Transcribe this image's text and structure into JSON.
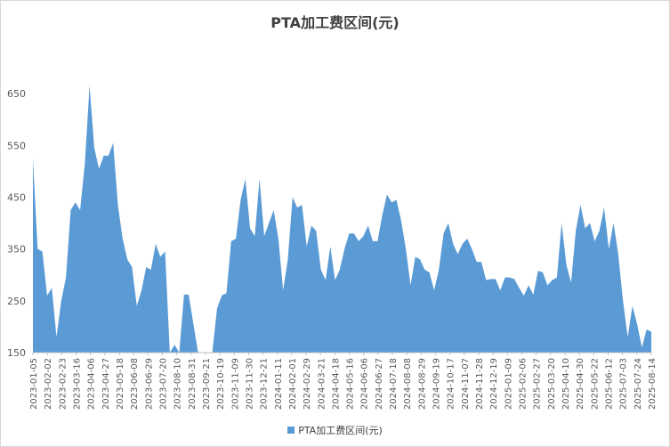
{
  "chart_data": {
    "type": "area",
    "title": "PTA加工费区间(元)",
    "xlabel": "",
    "ylabel": "",
    "ylim": [
      150,
      700
    ],
    "yticks": [
      150,
      250,
      350,
      450,
      550,
      650
    ],
    "grid": false,
    "legend_position": "bottom",
    "color": "#5b9bd5",
    "x_tick_labels": [
      "2023-01-05",
      "2023-02-02",
      "2023-02-23",
      "2023-03-16",
      "2023-04-06",
      "2023-04-27",
      "2023-05-18",
      "2023-06-08",
      "2023-06-29",
      "2023-07-20",
      "2023-08-10",
      "2023-08-31",
      "2023-09-21",
      "2023-10-19",
      "2023-11-09",
      "2023-11-30",
      "2023-12-21",
      "2024-01-11",
      "2024-02-01",
      "2024-02-29",
      "2024-03-21",
      "2024-04-18",
      "2024-05-16",
      "2024-06-06",
      "2024-06-27",
      "2024-07-18",
      "2024-08-08",
      "2024-08-29",
      "2024-09-19",
      "2024-10-17",
      "2024-11-07",
      "2024-11-28",
      "2024-12-19",
      "2025-01-09",
      "2025-02-06",
      "2025-02-27",
      "2025-03-20",
      "2025-04-10",
      "2025-04-30",
      "2025-05-22",
      "2025-06-12",
      "2025-07-03",
      "2025-07-24",
      "2025-08-14"
    ],
    "series": [
      {
        "name": "PTA加工费区间(元)",
        "values": [
          525,
          350,
          345,
          260,
          275,
          180,
          250,
          295,
          425,
          440,
          425,
          515,
          665,
          545,
          505,
          530,
          530,
          555,
          435,
          370,
          330,
          315,
          240,
          270,
          315,
          310,
          360,
          335,
          345,
          150,
          165,
          150,
          262,
          262,
          205,
          150,
          150,
          150,
          150,
          235,
          260,
          265,
          365,
          370,
          445,
          485,
          390,
          375,
          485,
          375,
          400,
          425,
          370,
          270,
          330,
          450,
          430,
          435,
          355,
          395,
          385,
          310,
          290,
          355,
          290,
          310,
          350,
          380,
          380,
          365,
          375,
          395,
          365,
          365,
          415,
          455,
          440,
          445,
          405,
          350,
          280,
          335,
          330,
          310,
          305,
          270,
          310,
          380,
          400,
          360,
          340,
          360,
          370,
          350,
          325,
          325,
          290,
          292,
          292,
          270,
          295,
          295,
          292,
          275,
          260,
          280,
          262,
          308,
          305,
          280,
          290,
          295,
          400,
          320,
          285,
          385,
          435,
          390,
          400,
          365,
          385,
          430,
          350,
          400,
          340,
          250,
          180,
          240,
          205,
          160,
          195,
          190
        ]
      }
    ]
  }
}
